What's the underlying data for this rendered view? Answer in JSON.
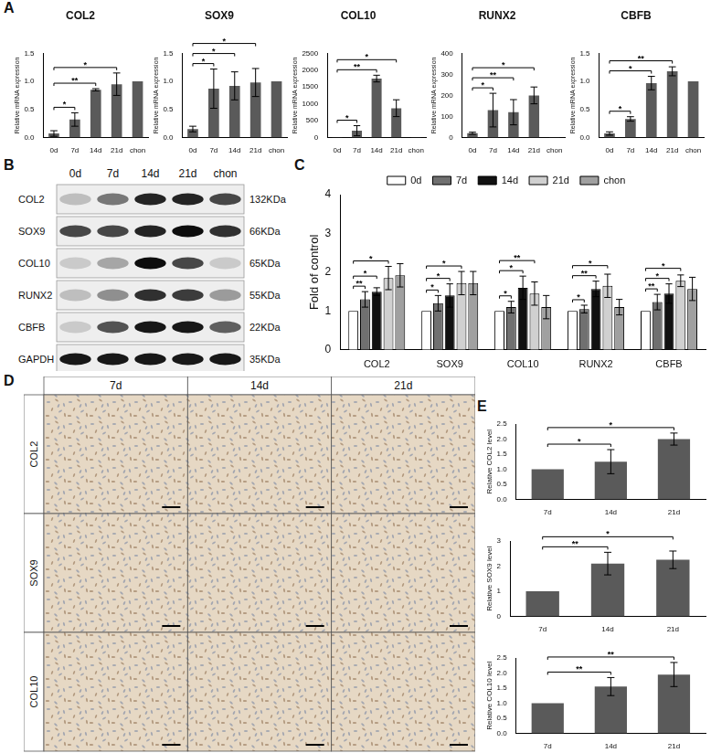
{
  "panels": [
    "A",
    "B",
    "C",
    "D",
    "E"
  ],
  "chart_data": [
    {
      "type": "bar",
      "title": "COL2",
      "y_label": "Relative mRNA expression",
      "categories": [
        "0d",
        "7d",
        "14d",
        "21d",
        "chon"
      ],
      "values": [
        0.07,
        0.32,
        0.85,
        0.95,
        1.0
      ],
      "errors": [
        0.05,
        0.12,
        0.02,
        0.2,
        0
      ],
      "color": "#5a5a5a",
      "ylim": [
        0,
        1.5
      ],
      "yticks": [
        {
          "value": 0,
          "label": "0.0"
        },
        {
          "value": 0.5,
          "label": "0.5"
        },
        {
          "value": 1,
          "label": "1.0"
        },
        {
          "value": 1.5,
          "label": "1.5"
        }
      ],
      "grid": false,
      "annotations": [
        {
          "from": "0d",
          "to": "7d",
          "label": "*"
        },
        {
          "from": "0d",
          "to": "14d",
          "label": "**"
        },
        {
          "from": "0d",
          "to": "21d",
          "label": "*"
        }
      ]
    },
    {
      "type": "bar",
      "title": "SOX9",
      "y_label": "Relative mRNA expression",
      "categories": [
        "0d",
        "7d",
        "14d",
        "21d",
        "chon"
      ],
      "values": [
        0.15,
        0.87,
        0.92,
        0.98,
        1.0
      ],
      "errors": [
        0.05,
        0.35,
        0.25,
        0.25,
        0
      ],
      "color": "#5a5a5a",
      "ylim": [
        0,
        1.5
      ],
      "yticks": [
        {
          "value": 0,
          "label": "0.0"
        },
        {
          "value": 0.5,
          "label": "0.5"
        },
        {
          "value": 1,
          "label": "1.0"
        },
        {
          "value": 1.5,
          "label": "1.5"
        }
      ],
      "grid": false,
      "annotations": [
        {
          "from": "0d",
          "to": "7d",
          "label": "*"
        },
        {
          "from": "0d",
          "to": "14d",
          "label": "*"
        },
        {
          "from": "0d",
          "to": "21d",
          "label": "*"
        }
      ]
    },
    {
      "type": "bar",
      "title": "COL10",
      "y_label": "Relative mRNA expression",
      "categories": [
        "0d",
        "7d",
        "14d",
        "21d",
        "chon"
      ],
      "values": [
        1,
        200,
        1750,
        870,
        1
      ],
      "errors": [
        0,
        150,
        100,
        250,
        0
      ],
      "color": "#5a5a5a",
      "ylim": [
        0,
        2500
      ],
      "yticks": [
        0,
        500,
        1000,
        1500,
        2000,
        2500
      ],
      "grid": false,
      "annotations": [
        {
          "from": "0d",
          "to": "7d",
          "label": "*"
        },
        {
          "from": "0d",
          "to": "14d",
          "label": "**"
        },
        {
          "from": "0d",
          "to": "21d",
          "label": "*"
        }
      ]
    },
    {
      "type": "bar",
      "title": "RUNX2",
      "y_label": "Relative mRNA expression",
      "categories": [
        "0d",
        "7d",
        "14d",
        "21d",
        "chon"
      ],
      "values": [
        20,
        130,
        120,
        200,
        1
      ],
      "errors": [
        5,
        80,
        60,
        40,
        0
      ],
      "color": "#5a5a5a",
      "ylim": [
        0,
        400
      ],
      "yticks": [
        0,
        100,
        200,
        300,
        400
      ],
      "grid": false,
      "annotations": [
        {
          "from": "0d",
          "to": "7d",
          "label": "*"
        },
        {
          "from": "0d",
          "to": "14d",
          "label": "**"
        },
        {
          "from": "0d",
          "to": "21d",
          "label": "*"
        }
      ]
    },
    {
      "type": "bar",
      "title": "CBFB",
      "y_label": "Relative mRNA expression",
      "categories": [
        "0d",
        "7d",
        "14d",
        "21d",
        "chon"
      ],
      "values": [
        0.07,
        0.33,
        0.97,
        1.18,
        1.0
      ],
      "errors": [
        0.03,
        0.04,
        0.12,
        0.08,
        0
      ],
      "color": "#5a5a5a",
      "ylim": [
        0,
        1.5
      ],
      "yticks": [
        {
          "value": 0,
          "label": "0.0"
        },
        {
          "value": 0.5,
          "label": "0.5"
        },
        {
          "value": 1,
          "label": "1.0"
        },
        {
          "value": 1.5,
          "label": "1.5"
        }
      ],
      "grid": false,
      "annotations": [
        {
          "from": "0d",
          "to": "7d",
          "label": "*"
        },
        {
          "from": "0d",
          "to": "14d",
          "label": "*"
        },
        {
          "from": "0d",
          "to": "21d",
          "label": "**"
        }
      ]
    },
    {
      "type": "bar",
      "y_label": "Fold of control",
      "categories": [
        "COL2",
        "SOX9",
        "COL10",
        "RUNX2",
        "CBFB"
      ],
      "series": [
        {
          "name": "0d",
          "color": "#ffffff",
          "values": [
            1,
            1,
            1,
            1,
            1
          ],
          "errors": [
            0,
            0,
            0,
            0,
            0
          ]
        },
        {
          "name": "7d",
          "color": "#707070",
          "values": [
            1.3,
            1.2,
            1.1,
            1.05,
            1.23
          ],
          "errors": [
            0.2,
            0.2,
            0.15,
            0.1,
            0.2
          ]
        },
        {
          "name": "14d",
          "color": "#111111",
          "values": [
            1.5,
            1.4,
            1.6,
            1.57,
            1.45
          ],
          "errors": [
            0.1,
            0.3,
            0.3,
            0.2,
            0.25
          ]
        },
        {
          "name": "21d",
          "color": "#d0d0d0",
          "values": [
            1.85,
            1.72,
            1.45,
            1.65,
            1.78
          ],
          "errors": [
            0.3,
            0.3,
            0.3,
            0.3,
            0.15
          ]
        },
        {
          "name": "chon",
          "color": "#a0a0a0",
          "values": [
            1.92,
            1.72,
            1.1,
            1.1,
            1.57
          ],
          "errors": [
            0.3,
            0.3,
            0.3,
            0.2,
            0.3
          ]
        }
      ],
      "ylim": [
        0,
        4
      ],
      "yticks": [
        0,
        1,
        2,
        3,
        4
      ],
      "grid": false,
      "legend": "top",
      "annotations": [
        {
          "category": "COL2",
          "from": "0d",
          "to": "7d",
          "label": "**"
        },
        {
          "category": "COL2",
          "from": "0d",
          "to": "14d",
          "label": "*"
        },
        {
          "category": "COL2",
          "from": "0d",
          "to": "21d",
          "label": "*"
        },
        {
          "category": "SOX9",
          "from": "0d",
          "to": "7d",
          "label": "*"
        },
        {
          "category": "SOX9",
          "from": "0d",
          "to": "14d",
          "label": "*"
        },
        {
          "category": "SOX9",
          "from": "0d",
          "to": "21d",
          "label": "*"
        },
        {
          "category": "COL10",
          "from": "0d",
          "to": "7d",
          "label": "*"
        },
        {
          "category": "COL10",
          "from": "0d",
          "to": "14d",
          "label": "*"
        },
        {
          "category": "COL10",
          "from": "0d",
          "to": "21d",
          "label": "**"
        },
        {
          "category": "RUNX2",
          "from": "0d",
          "to": "7d",
          "label": "*"
        },
        {
          "category": "RUNX2",
          "from": "0d",
          "to": "14d",
          "label": "**"
        },
        {
          "category": "RUNX2",
          "from": "0d",
          "to": "21d",
          "label": "*"
        },
        {
          "category": "CBFB",
          "from": "0d",
          "to": "7d",
          "label": "**"
        },
        {
          "category": "CBFB",
          "from": "0d",
          "to": "14d",
          "label": "*"
        },
        {
          "category": "CBFB",
          "from": "0d",
          "to": "21d",
          "label": "*"
        }
      ]
    },
    {
      "type": "bar",
      "y_label": "Relative COL2 level",
      "categories": [
        "7d",
        "14d",
        "21d"
      ],
      "values": [
        1,
        1.25,
        2.0
      ],
      "errors": [
        0,
        0.4,
        0.2
      ],
      "color": "#5a5a5a",
      "ylim": [
        0,
        2.5
      ],
      "yticks": [
        {
          "value": 0,
          "label": "0.0"
        },
        {
          "value": 0.5,
          "label": "0.5"
        },
        {
          "value": 1,
          "label": "1.0"
        },
        {
          "value": 1.5,
          "label": "1.5"
        },
        {
          "value": 2,
          "label": "2.0"
        },
        {
          "value": 2.5,
          "label": "2.5"
        }
      ],
      "grid": false,
      "annotations": [
        {
          "from": "7d",
          "to": "14d",
          "label": "*"
        },
        {
          "from": "7d",
          "to": "21d",
          "label": "*"
        }
      ]
    },
    {
      "type": "bar",
      "y_label": "Relative SOX9 level",
      "categories": [
        "7d",
        "14d",
        "21d"
      ],
      "values": [
        1,
        2.1,
        2.25
      ],
      "errors": [
        0,
        0.45,
        0.35
      ],
      "color": "#5a5a5a",
      "ylim": [
        0,
        3
      ],
      "yticks": [
        0,
        1,
        2,
        3
      ],
      "grid": false,
      "annotations": [
        {
          "from": "7d",
          "to": "14d",
          "label": "**"
        },
        {
          "from": "7d",
          "to": "21d",
          "label": "*"
        }
      ]
    },
    {
      "type": "bar",
      "y_label": "Relative COL10 level",
      "categories": [
        "7d",
        "14d",
        "21d"
      ],
      "values": [
        1,
        1.55,
        1.95
      ],
      "errors": [
        0,
        0.3,
        0.4
      ],
      "color": "#5a5a5a",
      "ylim": [
        0,
        2.5
      ],
      "yticks": [
        {
          "value": 0,
          "label": "0.0"
        },
        {
          "value": 0.5,
          "label": "0.5"
        },
        {
          "value": 1,
          "label": "1.0"
        },
        {
          "value": 1.5,
          "label": "1.5"
        },
        {
          "value": 2,
          "label": "2.0"
        },
        {
          "value": 2.5,
          "label": "2.5"
        }
      ],
      "grid": false,
      "annotations": [
        {
          "from": "7d",
          "to": "14d",
          "label": "**"
        },
        {
          "from": "7d",
          "to": "21d",
          "label": "**"
        }
      ]
    }
  ],
  "blot": {
    "lanes": [
      "0d",
      "7d",
      "14d",
      "21d",
      "chon"
    ],
    "rows": [
      {
        "name": "COL2",
        "size": "132KDa",
        "bands": [
          0.2,
          0.5,
          0.85,
          0.85,
          0.7
        ]
      },
      {
        "name": "SOX9",
        "size": "66KDa",
        "bands": [
          0.7,
          0.7,
          0.85,
          0.95,
          0.8
        ]
      },
      {
        "name": "COL10",
        "size": "65KDa",
        "bands": [
          0.15,
          0.3,
          0.95,
          0.7,
          0.15
        ]
      },
      {
        "name": "RUNX2",
        "size": "55KDa",
        "bands": [
          0.2,
          0.4,
          0.8,
          0.75,
          0.35
        ]
      },
      {
        "name": "CBFB",
        "size": "22KDa",
        "bands": [
          0.15,
          0.65,
          0.9,
          0.9,
          0.6
        ]
      },
      {
        "name": "GAPDH",
        "size": "35KDa",
        "bands": [
          0.9,
          0.9,
          0.9,
          0.9,
          0.9
        ]
      }
    ]
  },
  "ihc": {
    "columns": [
      "7d",
      "14d",
      "21d"
    ],
    "rows": [
      "COL2",
      "SOX9",
      "COL10"
    ]
  }
}
